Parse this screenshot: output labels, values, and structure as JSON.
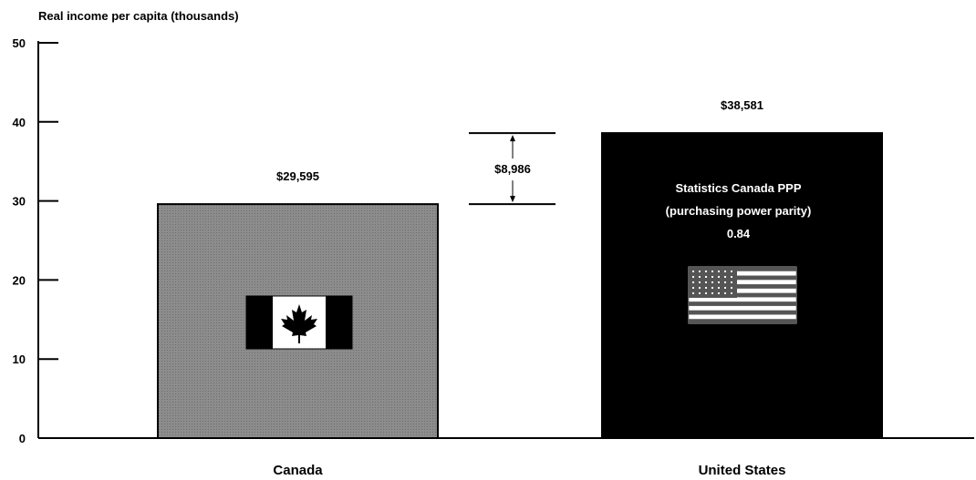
{
  "chart_data": {
    "type": "bar",
    "ylabel": "Real income per capita (thousands)",
    "ylim": [
      0,
      50
    ],
    "yticks": [
      "0",
      "10",
      "20",
      "30",
      "40",
      "50"
    ],
    "categories": [
      "Canada",
      "United States"
    ],
    "values": [
      29.595,
      38.581
    ],
    "value_labels": [
      "$29,595",
      "$38,581"
    ],
    "bar_colors": [
      "#8c8c8c",
      "#000000"
    ],
    "difference_label": "$8,986",
    "annotation_lines": [
      "Statistics Canada PPP",
      "(purchasing power parity)",
      "0.84"
    ],
    "flags": [
      "canada-flag-icon",
      "us-flag-icon"
    ]
  }
}
